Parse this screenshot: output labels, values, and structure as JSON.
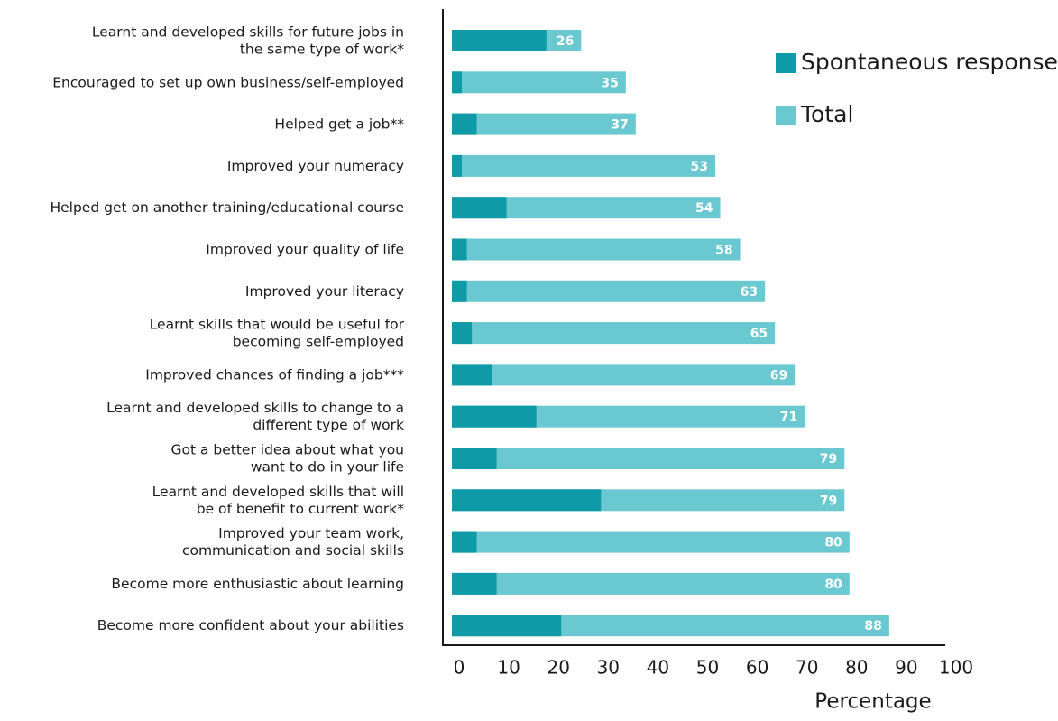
{
  "chart_data": {
    "type": "bar",
    "orientation": "horizontal",
    "categories": [
      [
        "Learnt and developed skills for future jobs in",
        "the same type of work*"
      ],
      [
        "Encouraged to set up own business/self-employed"
      ],
      [
        "Helped get a job**"
      ],
      [
        "Improved your numeracy"
      ],
      [
        "Helped get on another training/educational course"
      ],
      [
        "Improved your quality of life"
      ],
      [
        "Improved your literacy"
      ],
      [
        "Learnt skills that would be useful for",
        "becoming self-employed"
      ],
      [
        "Improved chances of finding a job***"
      ],
      [
        "Learnt and developed skills to change to a",
        "different type of work"
      ],
      [
        "Got a better idea about what you",
        "want to do in your life"
      ],
      [
        "Learnt and developed skills that will",
        "be of benefit to current work*"
      ],
      [
        "Improved your team work,",
        "communication and social skills"
      ],
      [
        "Become more enthusiastic about learning"
      ],
      [
        "Become more confident about your abilities"
      ]
    ],
    "series": [
      {
        "name": "Total",
        "color": "#6ac8d0",
        "values": [
          26,
          35,
          37,
          53,
          54,
          58,
          63,
          65,
          69,
          71,
          79,
          79,
          80,
          80,
          88
        ]
      },
      {
        "name": "Spontaneous response",
        "color": "#0e9aa7",
        "values": [
          19,
          2,
          5,
          2,
          11,
          3,
          3,
          4,
          8,
          17,
          9,
          30,
          5,
          9,
          22
        ]
      }
    ],
    "xlabel": "Percentage",
    "xlim": [
      0,
      100
    ],
    "xticks": [
      0,
      10,
      20,
      30,
      40,
      50,
      60,
      70,
      80,
      90,
      100
    ],
    "legend": "upper right"
  }
}
